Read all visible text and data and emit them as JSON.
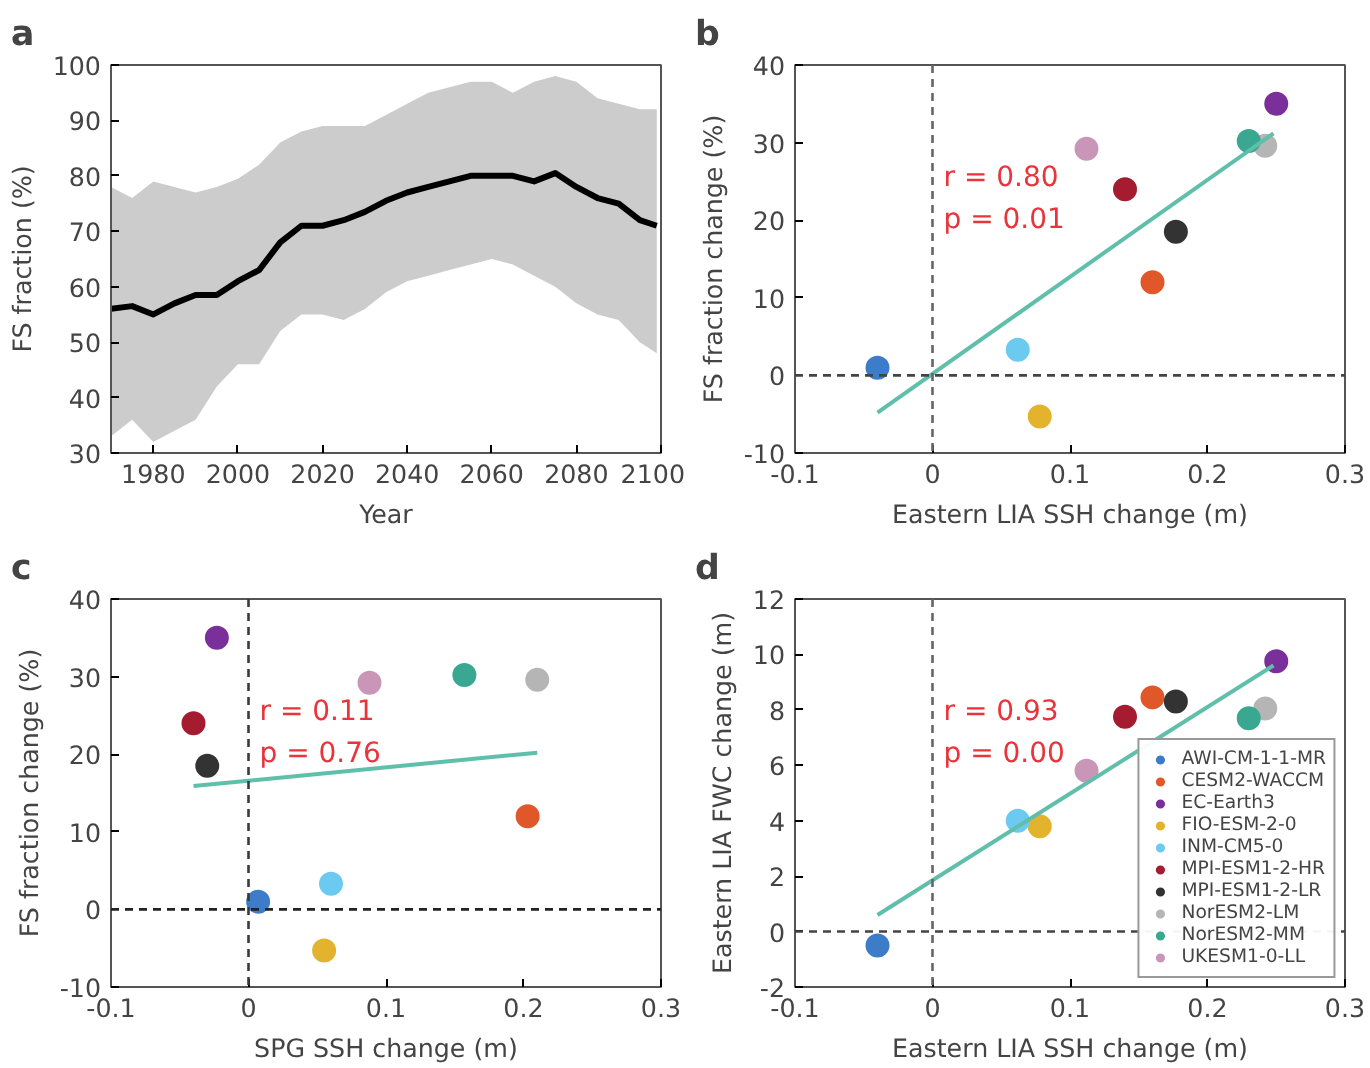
{
  "chart_data": [
    {
      "type": "line",
      "title": "a",
      "xlabel": "Year",
      "ylabel": "FS fraction (%)",
      "xlim": [
        1970,
        2100
      ],
      "xticks": [
        1980,
        2000,
        2020,
        2040,
        2060,
        2080,
        2100
      ],
      "ylim": [
        30,
        100
      ],
      "yticks": [
        30,
        40,
        50,
        60,
        70,
        80,
        90,
        100
      ],
      "grid": false,
      "series": [
        {
          "color": "#000000",
          "x": [
            1970,
            1975,
            1980,
            1985,
            1990,
            1995,
            2000,
            2005,
            2010,
            2015,
            2020,
            2025,
            2030,
            2035,
            2040,
            2045,
            2050,
            2055,
            2060,
            2065,
            2070,
            2075,
            2080,
            2085,
            2090,
            2095,
            2099
          ],
          "values": [
            56,
            56.5,
            55,
            57,
            58.5,
            58.5,
            61,
            63,
            68,
            71,
            71,
            72,
            73.5,
            75.5,
            77,
            78,
            79,
            80,
            80,
            80,
            79,
            80.5,
            78,
            76,
            75,
            72,
            71
          ],
          "lower": [
            33,
            36,
            32,
            34,
            36,
            42,
            46,
            46,
            52,
            55,
            55,
            54,
            56,
            59,
            61,
            62,
            63,
            64,
            65,
            64,
            62,
            60,
            57,
            55,
            54,
            50,
            48
          ],
          "upper": [
            78,
            76,
            79,
            78,
            77,
            78,
            79.5,
            82,
            86,
            88,
            89,
            89,
            89,
            91,
            93,
            95,
            96,
            97,
            97,
            95,
            97,
            98,
            97,
            94,
            93,
            92,
            92
          ]
        }
      ]
    },
    {
      "type": "scatter",
      "title": "b",
      "xlabel": "Eastern LIA SSH change (m)",
      "ylabel": "FS fraction change (%)",
      "xlim": [
        -0.1,
        0.3
      ],
      "xticks": [
        -0.1,
        0,
        0.1,
        0.2,
        0.3
      ],
      "ylim": [
        -10,
        40
      ],
      "yticks": [
        -10,
        0,
        10,
        20,
        30,
        40
      ],
      "grid": false,
      "marker": "circle",
      "annotations": [
        "r = 0.80",
        "p = 0.01"
      ],
      "ref_lines": [
        {
          "axis": "x",
          "value": 0,
          "line_style": "dashed",
          "color": "#666666"
        },
        {
          "axis": "y",
          "value": 0,
          "line_style": "dashed",
          "color": "#444444"
        }
      ],
      "series": [
        {
          "x": [
            -0.04,
            0.16,
            0.25,
            0.078,
            0.062,
            0.14,
            0.177,
            0.242,
            0.23,
            0.112
          ],
          "values": [
            1,
            12,
            35,
            -5.3,
            3.3,
            24,
            18.5,
            29.6,
            30.2,
            29.2
          ],
          "colors": [
            "#3d7cc9",
            "#e0582a",
            "#7b2f9a",
            "#e3b32e",
            "#6ccaf0",
            "#a51c30",
            "#333333",
            "#b5b5b5",
            "#3aa790",
            "#c996b8"
          ]
        },
        {
          "type": "line",
          "marker": "none",
          "color": "#5fbfaa",
          "x": [
            -0.04,
            0.248
          ],
          "values": [
            -4.8,
            31.2
          ]
        }
      ]
    },
    {
      "type": "scatter",
      "title": "c",
      "xlabel": "SPG SSH change (m)",
      "ylabel": "FS fraction change (%)",
      "xlim": [
        -0.1,
        0.3
      ],
      "xticks": [
        -0.1,
        0,
        0.1,
        0.2,
        0.3
      ],
      "ylim": [
        -10,
        40
      ],
      "yticks": [
        -10,
        0,
        10,
        20,
        30,
        40
      ],
      "grid": false,
      "marker": "circle",
      "annotations": [
        "r = 0.11",
        "p = 0.76"
      ],
      "ref_lines": [
        {
          "axis": "x",
          "value": 0,
          "line_style": "dashed",
          "color": "#3a3a3a"
        },
        {
          "axis": "y",
          "value": 0,
          "line_style": "dashed",
          "color": "#222222"
        }
      ],
      "series": [
        {
          "x": [
            0.007,
            0.203,
            -0.023,
            0.055,
            0.06,
            -0.04,
            -0.03,
            0.21,
            0.157,
            0.088
          ],
          "values": [
            1,
            12,
            35,
            -5.3,
            3.3,
            24,
            18.5,
            29.6,
            30.2,
            29.2
          ],
          "colors": [
            "#3d7cc9",
            "#e0582a",
            "#7b2f9a",
            "#e3b32e",
            "#6ccaf0",
            "#a51c30",
            "#333333",
            "#b5b5b5",
            "#3aa790",
            "#c996b8"
          ]
        },
        {
          "type": "line",
          "marker": "none",
          "color": "#5fbfaa",
          "x": [
            -0.04,
            0.21
          ],
          "values": [
            15.9,
            20.2
          ]
        }
      ]
    },
    {
      "type": "scatter",
      "title": "d",
      "xlabel": "Eastern LIA SSH change (m)",
      "ylabel": "Eastern LIA FWC change (m)",
      "xlim": [
        -0.1,
        0.3
      ],
      "xticks": [
        -0.1,
        0,
        0.1,
        0.2,
        0.3
      ],
      "ylim": [
        -2,
        12
      ],
      "yticks": [
        -2,
        0,
        2,
        4,
        6,
        8,
        10,
        12
      ],
      "grid": false,
      "marker": "circle",
      "legend": "bottom right",
      "annotations": [
        "r = 0.93",
        "p = 0.00"
      ],
      "ref_lines": [
        {
          "axis": "x",
          "value": 0,
          "line_style": "dashed",
          "color": "#666666"
        },
        {
          "axis": "y",
          "value": 0,
          "line_style": "dashed",
          "color": "#444444"
        }
      ],
      "series": [
        {
          "name": "AWI-CM-1-1-MR",
          "color": "#3d7cc9",
          "x": [
            -0.04
          ],
          "values": [
            -0.5
          ]
        },
        {
          "name": "CESM2-WACCM",
          "color": "#e0582a",
          "x": [
            0.16
          ],
          "values": [
            8.45
          ]
        },
        {
          "name": "EC-Earth3",
          "color": "#7b2f9a",
          "x": [
            0.25
          ],
          "values": [
            9.75
          ]
        },
        {
          "name": "FIO-ESM-2-0",
          "color": "#e3b32e",
          "x": [
            0.078
          ],
          "values": [
            3.8
          ]
        },
        {
          "name": "INM-CM5-0",
          "color": "#6ccaf0",
          "x": [
            0.062
          ],
          "values": [
            4.0
          ]
        },
        {
          "name": "MPI-ESM1-2-HR",
          "color": "#a51c30",
          "x": [
            0.14
          ],
          "values": [
            7.75
          ]
        },
        {
          "name": "MPI-ESM1-2-LR",
          "color": "#333333",
          "x": [
            0.177
          ],
          "values": [
            8.3
          ]
        },
        {
          "name": "NorESM2-LM",
          "color": "#b5b5b5",
          "x": [
            0.242
          ],
          "values": [
            8.05
          ]
        },
        {
          "name": "NorESM2-MM",
          "color": "#3aa790",
          "x": [
            0.23
          ],
          "values": [
            7.7
          ]
        },
        {
          "name": "UKESM1-0-LL",
          "color": "#c996b8",
          "x": [
            0.112
          ],
          "values": [
            5.8
          ]
        },
        {
          "type": "line",
          "marker": "none",
          "color": "#5fbfaa",
          "x": [
            -0.04,
            0.248
          ],
          "values": [
            0.6,
            9.6
          ]
        }
      ]
    }
  ]
}
